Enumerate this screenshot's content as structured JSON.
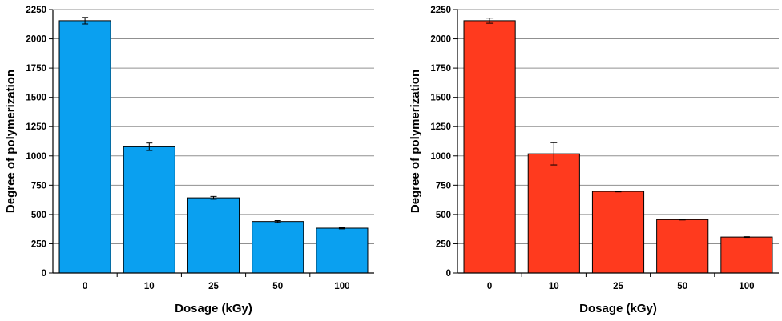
{
  "chart_data": [
    {
      "type": "bar",
      "title": "",
      "xlabel": "Dosage (kGy)",
      "ylabel": "Degree of polymerization",
      "categories": [
        "0",
        "10",
        "25",
        "50",
        "100"
      ],
      "values": [
        2155,
        1078,
        642,
        440,
        383
      ],
      "errors": [
        28,
        32,
        12,
        8,
        6
      ],
      "ylim": [
        0,
        2250
      ],
      "yticks": [
        "0",
        "250",
        "500",
        "750",
        "1000",
        "1250",
        "1500",
        "1750",
        "2000",
        "2250"
      ],
      "grid": "horizontal",
      "bar_color": "#0aa0f0"
    },
    {
      "type": "bar",
      "title": "",
      "xlabel": "Dosage (kGy)",
      "ylabel": "Degree of polymerization",
      "categories": [
        "0",
        "10",
        "25",
        "50",
        "100"
      ],
      "values": [
        2155,
        1018,
        697,
        456,
        307
      ],
      "errors": [
        22,
        95,
        4,
        3,
        3
      ],
      "ylim": [
        0,
        2250
      ],
      "yticks": [
        "0",
        "250",
        "500",
        "750",
        "1000",
        "1250",
        "1500",
        "1750",
        "2000",
        "2250"
      ],
      "grid": "horizontal",
      "bar_color": "#ff3a1e"
    }
  ]
}
